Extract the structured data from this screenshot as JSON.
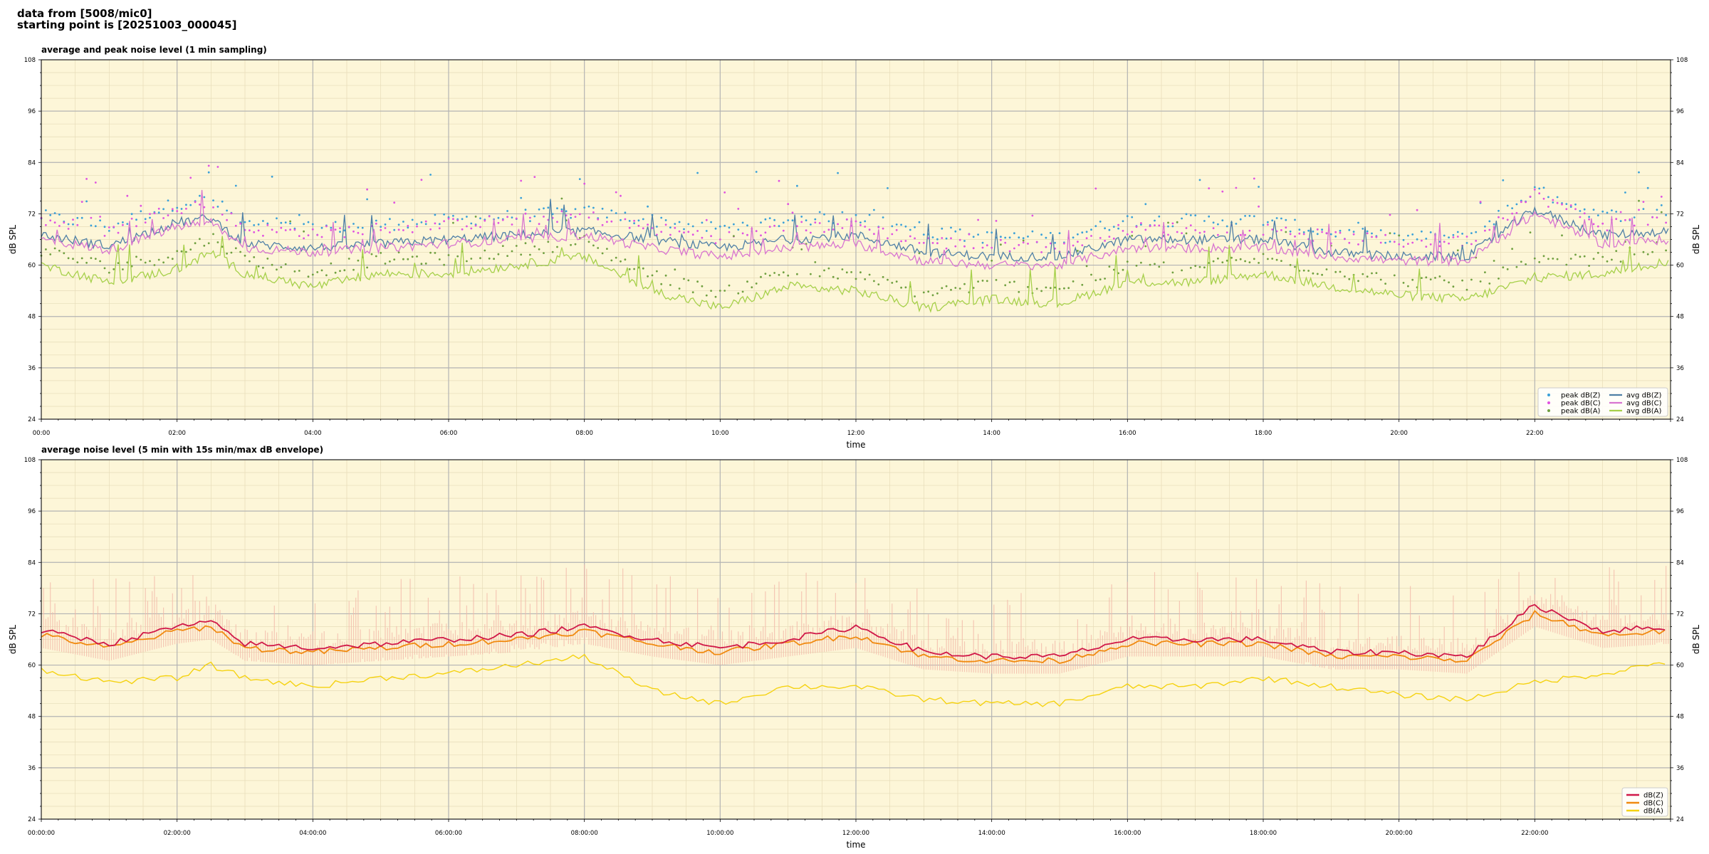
{
  "header": {
    "line1": "data from [5008/mic0]",
    "line2": "starting point is [20251003_000045]"
  },
  "colors": {
    "panel_bg": "#fdf6d8",
    "grid_major": "#b3b3b3",
    "grid_minor": "#e6dcb8",
    "peak_z": "#3aa0d8",
    "peak_c": "#e052e0",
    "peak_a": "#70a040",
    "avg_z": "#4e7fa6",
    "avg_c": "#d874d0",
    "avg_a": "#a6d04a",
    "env_fill": "#f3b8a8",
    "line_z": "#d01848",
    "line_c": "#f08a10",
    "line_a": "#f5d210"
  },
  "chart_data": [
    {
      "type": "line",
      "title": "average and peak noise level (1 min sampling)",
      "xlabel": "time",
      "ylabel": "dB SPL",
      "ylabel_right": "dB SPL",
      "xlim": [
        0,
        24
      ],
      "ylim": [
        24,
        108
      ],
      "yticks": [
        "108",
        "96",
        "84",
        "72",
        "60",
        "48",
        "36",
        "24"
      ],
      "xticks": [
        "00:00",
        "02:00",
        "04:00",
        "06:00",
        "08:00",
        "10:00",
        "12:00",
        "14:00",
        "16:00",
        "18:00",
        "20:00",
        "22:00"
      ],
      "grid": true,
      "legend": "lower-right",
      "legend_entries": [
        "peak dB(Z)",
        "peak dB(C)",
        "peak dB(A)",
        "avg dB(Z)",
        "avg dB(C)",
        "avg dB(A)"
      ],
      "x": [
        0,
        1,
        2,
        2.5,
        3,
        4,
        5,
        6,
        7,
        8,
        9,
        10,
        11,
        12,
        13,
        14,
        15,
        16,
        17,
        18,
        19,
        20,
        21,
        22,
        23,
        24
      ],
      "series": [
        {
          "name": "avg dB(Z)",
          "values": [
            67,
            64.5,
            70,
            71,
            65,
            64,
            65,
            66,
            67,
            68,
            66,
            64,
            66,
            67,
            63,
            62,
            62,
            66,
            66,
            66,
            63,
            62,
            62,
            73,
            67,
            68
          ]
        },
        {
          "name": "avg dB(C)",
          "values": [
            66,
            63.5,
            69,
            70,
            64,
            63,
            64,
            65,
            66,
            67,
            64,
            62,
            64,
            65,
            61,
            60,
            60,
            64,
            64,
            64,
            62,
            61,
            61,
            72,
            65,
            66
          ]
        },
        {
          "name": "avg dB(A)",
          "values": [
            60,
            56,
            59,
            63,
            58,
            55,
            58,
            58,
            60,
            62,
            54,
            50,
            55,
            54,
            50,
            52,
            51,
            56,
            56,
            58,
            55,
            53,
            52,
            57,
            58,
            61
          ]
        }
      ]
    },
    {
      "type": "line",
      "title": "average noise level (5 min with 15s min/max dB envelope)",
      "xlabel": "time",
      "ylabel": "dB SPL",
      "ylabel_right": "dB SPL",
      "xlim": [
        0,
        24
      ],
      "ylim": [
        24,
        108
      ],
      "yticks": [
        "108",
        "96",
        "84",
        "72",
        "60",
        "48",
        "36",
        "24"
      ],
      "xticks": [
        "00:00:00",
        "02:00:00",
        "04:00:00",
        "06:00:00",
        "08:00:00",
        "10:00:00",
        "12:00:00",
        "14:00:00",
        "16:00:00",
        "18:00:00",
        "20:00:00",
        "22:00:00"
      ],
      "grid": true,
      "legend": "lower-right",
      "legend_entries": [
        "dB(Z)",
        "dB(C)",
        "dB(A)"
      ],
      "x": [
        0,
        1,
        2,
        2.5,
        3,
        4,
        5,
        6,
        7,
        8,
        9,
        10,
        11,
        12,
        13,
        14,
        15,
        16,
        17,
        18,
        19,
        20,
        21,
        22,
        23,
        24
      ],
      "series": [
        {
          "name": "dB(Z)",
          "values": [
            68,
            65,
            69,
            70,
            65,
            64,
            65,
            66,
            67,
            69,
            66,
            64,
            66,
            69,
            63,
            62,
            62,
            66,
            66,
            66,
            63,
            63,
            62,
            74,
            68,
            69
          ]
        },
        {
          "name": "dB(C)",
          "values": [
            67,
            64,
            68,
            69,
            64,
            63,
            64,
            65,
            66,
            68,
            65,
            63,
            65,
            67,
            62,
            61,
            61,
            65,
            65,
            65,
            62,
            62,
            61,
            72,
            67,
            68
          ]
        },
        {
          "name": "dB(A)",
          "values": [
            59,
            56,
            57,
            60,
            57,
            55,
            57,
            58,
            60,
            62,
            54,
            51,
            55,
            55,
            52,
            51,
            51,
            55,
            55,
            57,
            55,
            53,
            52,
            56,
            58,
            61
          ]
        }
      ]
    }
  ]
}
